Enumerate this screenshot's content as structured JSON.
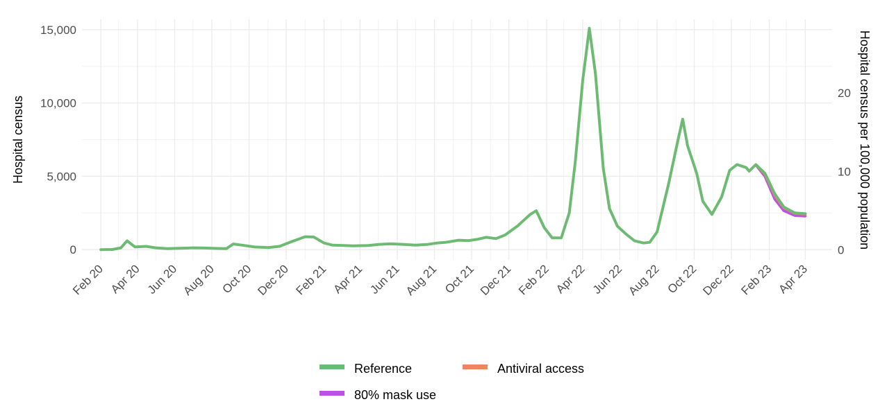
{
  "chart_data": {
    "type": "line",
    "title": "",
    "xlabel": "",
    "ylabel": "Hospital census",
    "y2label": "Hospital census per 100,000 population",
    "ylim": [
      -700,
      15700
    ],
    "y2lim": [
      -1.3,
      29.4
    ],
    "y_ticks": [
      0,
      5000,
      10000,
      15000
    ],
    "y_tick_labels": [
      "0",
      "5,000",
      "10,000",
      "15,000"
    ],
    "y2_ticks": [
      0,
      10,
      20
    ],
    "y2_tick_labels": [
      "0",
      "10",
      "20"
    ],
    "x_ticks": [
      "2020-02-01",
      "2020-04-01",
      "2020-06-01",
      "2020-08-01",
      "2020-10-01",
      "2020-12-01",
      "2021-02-01",
      "2021-04-01",
      "2021-06-01",
      "2021-08-01",
      "2021-10-01",
      "2021-12-01",
      "2022-02-01",
      "2022-04-01",
      "2022-06-01",
      "2022-08-01",
      "2022-10-01",
      "2022-12-01",
      "2023-02-01",
      "2023-04-01"
    ],
    "x_tick_labels": [
      "Feb 20",
      "Apr 20",
      "Jun 20",
      "Aug 20",
      "Oct 20",
      "Dec 20",
      "Feb 21",
      "Apr 21",
      "Jun 21",
      "Aug 21",
      "Oct 21",
      "Dec 21",
      "Feb 22",
      "Apr 22",
      "Jun 22",
      "Aug 22",
      "Oct 22",
      "Dec 22",
      "Feb 23",
      "Apr 23"
    ],
    "grid": true,
    "legend_position": "bottom",
    "series": [
      {
        "name": "Reference",
        "color": "#6dbb72",
        "points": [
          [
            "2020-02-01",
            0
          ],
          [
            "2020-02-20",
            10
          ],
          [
            "2020-03-05",
            120
          ],
          [
            "2020-03-15",
            600
          ],
          [
            "2020-03-28",
            180
          ],
          [
            "2020-04-15",
            220
          ],
          [
            "2020-05-01",
            120
          ],
          [
            "2020-05-20",
            70
          ],
          [
            "2020-06-10",
            90
          ],
          [
            "2020-07-01",
            120
          ],
          [
            "2020-07-20",
            110
          ],
          [
            "2020-08-10",
            80
          ],
          [
            "2020-08-25",
            70
          ],
          [
            "2020-09-05",
            380
          ],
          [
            "2020-09-20",
            300
          ],
          [
            "2020-10-10",
            180
          ],
          [
            "2020-11-01",
            140
          ],
          [
            "2020-11-20",
            220
          ],
          [
            "2020-12-10",
            550
          ],
          [
            "2021-01-01",
            880
          ],
          [
            "2021-01-15",
            860
          ],
          [
            "2021-02-01",
            450
          ],
          [
            "2021-02-15",
            300
          ],
          [
            "2021-03-01",
            290
          ],
          [
            "2021-03-20",
            260
          ],
          [
            "2021-04-15",
            280
          ],
          [
            "2021-05-01",
            350
          ],
          [
            "2021-05-20",
            390
          ],
          [
            "2021-06-10",
            360
          ],
          [
            "2021-07-01",
            300
          ],
          [
            "2021-07-20",
            350
          ],
          [
            "2021-08-05",
            450
          ],
          [
            "2021-08-20",
            500
          ],
          [
            "2021-09-10",
            640
          ],
          [
            "2021-09-25",
            610
          ],
          [
            "2021-10-10",
            700
          ],
          [
            "2021-10-25",
            840
          ],
          [
            "2021-11-10",
            750
          ],
          [
            "2021-11-25",
            1000
          ],
          [
            "2021-12-15",
            1600
          ],
          [
            "2022-01-05",
            2400
          ],
          [
            "2022-01-15",
            2650
          ],
          [
            "2022-01-28",
            1500
          ],
          [
            "2022-02-10",
            800
          ],
          [
            "2022-02-25",
            800
          ],
          [
            "2022-03-10",
            2500
          ],
          [
            "2022-03-20",
            6000
          ],
          [
            "2022-04-01",
            11500
          ],
          [
            "2022-04-12",
            15100
          ],
          [
            "2022-04-22",
            12000
          ],
          [
            "2022-05-05",
            5500
          ],
          [
            "2022-05-15",
            2800
          ],
          [
            "2022-05-28",
            1600
          ],
          [
            "2022-06-10",
            1100
          ],
          [
            "2022-06-25",
            600
          ],
          [
            "2022-07-10",
            450
          ],
          [
            "2022-07-20",
            500
          ],
          [
            "2022-08-01",
            1200
          ],
          [
            "2022-08-20",
            4500
          ],
          [
            "2022-09-05",
            7600
          ],
          [
            "2022-09-12",
            8900
          ],
          [
            "2022-09-20",
            7100
          ],
          [
            "2022-10-05",
            5200
          ],
          [
            "2022-10-15",
            3300
          ],
          [
            "2022-10-30",
            2400
          ],
          [
            "2022-11-15",
            3600
          ],
          [
            "2022-11-28",
            5400
          ],
          [
            "2022-12-10",
            5800
          ],
          [
            "2022-12-25",
            5600
          ],
          [
            "2022-12-30",
            5350
          ],
          [
            "2023-01-10",
            5800
          ],
          [
            "2023-01-25",
            5200
          ],
          [
            "2023-02-10",
            3800
          ],
          [
            "2023-02-25",
            2900
          ],
          [
            "2023-03-15",
            2500
          ],
          [
            "2023-04-01",
            2450
          ]
        ]
      },
      {
        "name": "Antiviral access",
        "color": "#ee8462",
        "points": [
          [
            "2023-01-10",
            5790
          ],
          [
            "2023-01-25",
            5150
          ],
          [
            "2023-02-10",
            3700
          ],
          [
            "2023-02-25",
            2850
          ],
          [
            "2023-03-15",
            2470
          ],
          [
            "2023-04-01",
            2420
          ]
        ]
      },
      {
        "name": "80% mask use",
        "color": "#b853e6",
        "points": [
          [
            "2023-01-10",
            5780
          ],
          [
            "2023-01-25",
            5000
          ],
          [
            "2023-02-10",
            3450
          ],
          [
            "2023-02-25",
            2650
          ],
          [
            "2023-03-15",
            2330
          ],
          [
            "2023-04-01",
            2290
          ]
        ]
      }
    ]
  },
  "legend": {
    "items": [
      {
        "label": "Reference",
        "color": "#6dbb72"
      },
      {
        "label": "Antiviral access",
        "color": "#ee8462"
      },
      {
        "label": "80% mask use",
        "color": "#b853e6"
      }
    ]
  }
}
